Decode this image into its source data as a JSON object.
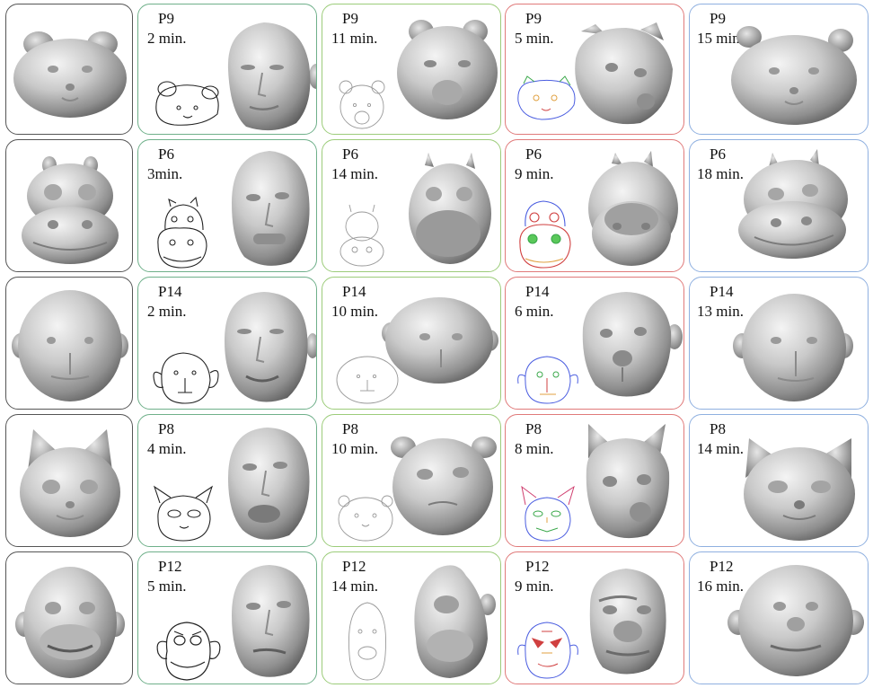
{
  "colors": {
    "reference_border": "#555555",
    "col2_border": "#6fb08a",
    "col3_border": "#9ccc7a",
    "col4_border": "#e07a7a",
    "col5_border": "#8fb0e0"
  },
  "rows": [
    {
      "reference_icon": "bear-head-model-icon",
      "cells": [
        {
          "participant": "P9",
          "time": "2 min.",
          "sketch": "bear-sketch-icon",
          "model": "human-head-model-icon"
        },
        {
          "participant": "P9",
          "time": "11 min.",
          "sketch": "bear-sketch-icon",
          "model": "bear-head-model-icon"
        },
        {
          "participant": "P9",
          "time": "5 min.",
          "sketch": "bear-colored-sketch-icon",
          "model": "bear-head-model-icon"
        },
        {
          "participant": "P9",
          "time": "15 min.",
          "model": "bear-head-model-icon"
        }
      ]
    },
    {
      "reference_icon": "hippo-head-model-icon",
      "cells": [
        {
          "participant": "P6",
          "time": "3min.",
          "sketch": "hippo-sketch-icon",
          "model": "human-head-model-icon"
        },
        {
          "participant": "P6",
          "time": "14 min.",
          "sketch": "hippo-sketch-icon",
          "model": "hippo-head-model-icon"
        },
        {
          "participant": "P6",
          "time": "9 min.",
          "sketch": "hippo-colored-sketch-icon",
          "model": "hippo-head-model-icon"
        },
        {
          "participant": "P6",
          "time": "18 min.",
          "model": "hippo-head-model-icon"
        }
      ]
    },
    {
      "reference_icon": "monkey-head-model-icon",
      "cells": [
        {
          "participant": "P14",
          "time": "2 min.",
          "sketch": "monkey-sketch-icon",
          "model": "human-head-model-icon"
        },
        {
          "participant": "P14",
          "time": "10 min.",
          "sketch": "monkey-sketch-icon",
          "model": "monkey-head-model-icon"
        },
        {
          "participant": "P14",
          "time": "6 min.",
          "sketch": "monkey-colored-sketch-icon",
          "model": "monkey-head-model-icon"
        },
        {
          "participant": "P14",
          "time": "13 min.",
          "model": "monkey-head-model-icon"
        }
      ]
    },
    {
      "reference_icon": "cat-head-model-icon",
      "cells": [
        {
          "participant": "P8",
          "time": "4 min.",
          "sketch": "cat-sketch-icon",
          "model": "human-head-model-icon"
        },
        {
          "participant": "P8",
          "time": "10 min.",
          "sketch": "cat-sketch-icon",
          "model": "cat-head-model-icon"
        },
        {
          "participant": "P8",
          "time": "8 min.",
          "sketch": "cat-colored-sketch-icon",
          "model": "cat-head-model-icon"
        },
        {
          "participant": "P8",
          "time": "14 min.",
          "model": "cat-head-model-icon"
        }
      ]
    },
    {
      "reference_icon": "ape-head-model-icon",
      "cells": [
        {
          "participant": "P12",
          "time": "5 min.",
          "sketch": "ape-sketch-icon",
          "model": "human-head-model-icon"
        },
        {
          "participant": "P12",
          "time": "14 min.",
          "sketch": "ape-sketch-icon",
          "model": "ape-head-model-icon"
        },
        {
          "participant": "P12",
          "time": "9 min.",
          "sketch": "ape-colored-sketch-icon",
          "model": "ape-head-model-icon"
        },
        {
          "participant": "P12",
          "time": "16 min.",
          "model": "ape-head-model-icon"
        }
      ]
    }
  ]
}
